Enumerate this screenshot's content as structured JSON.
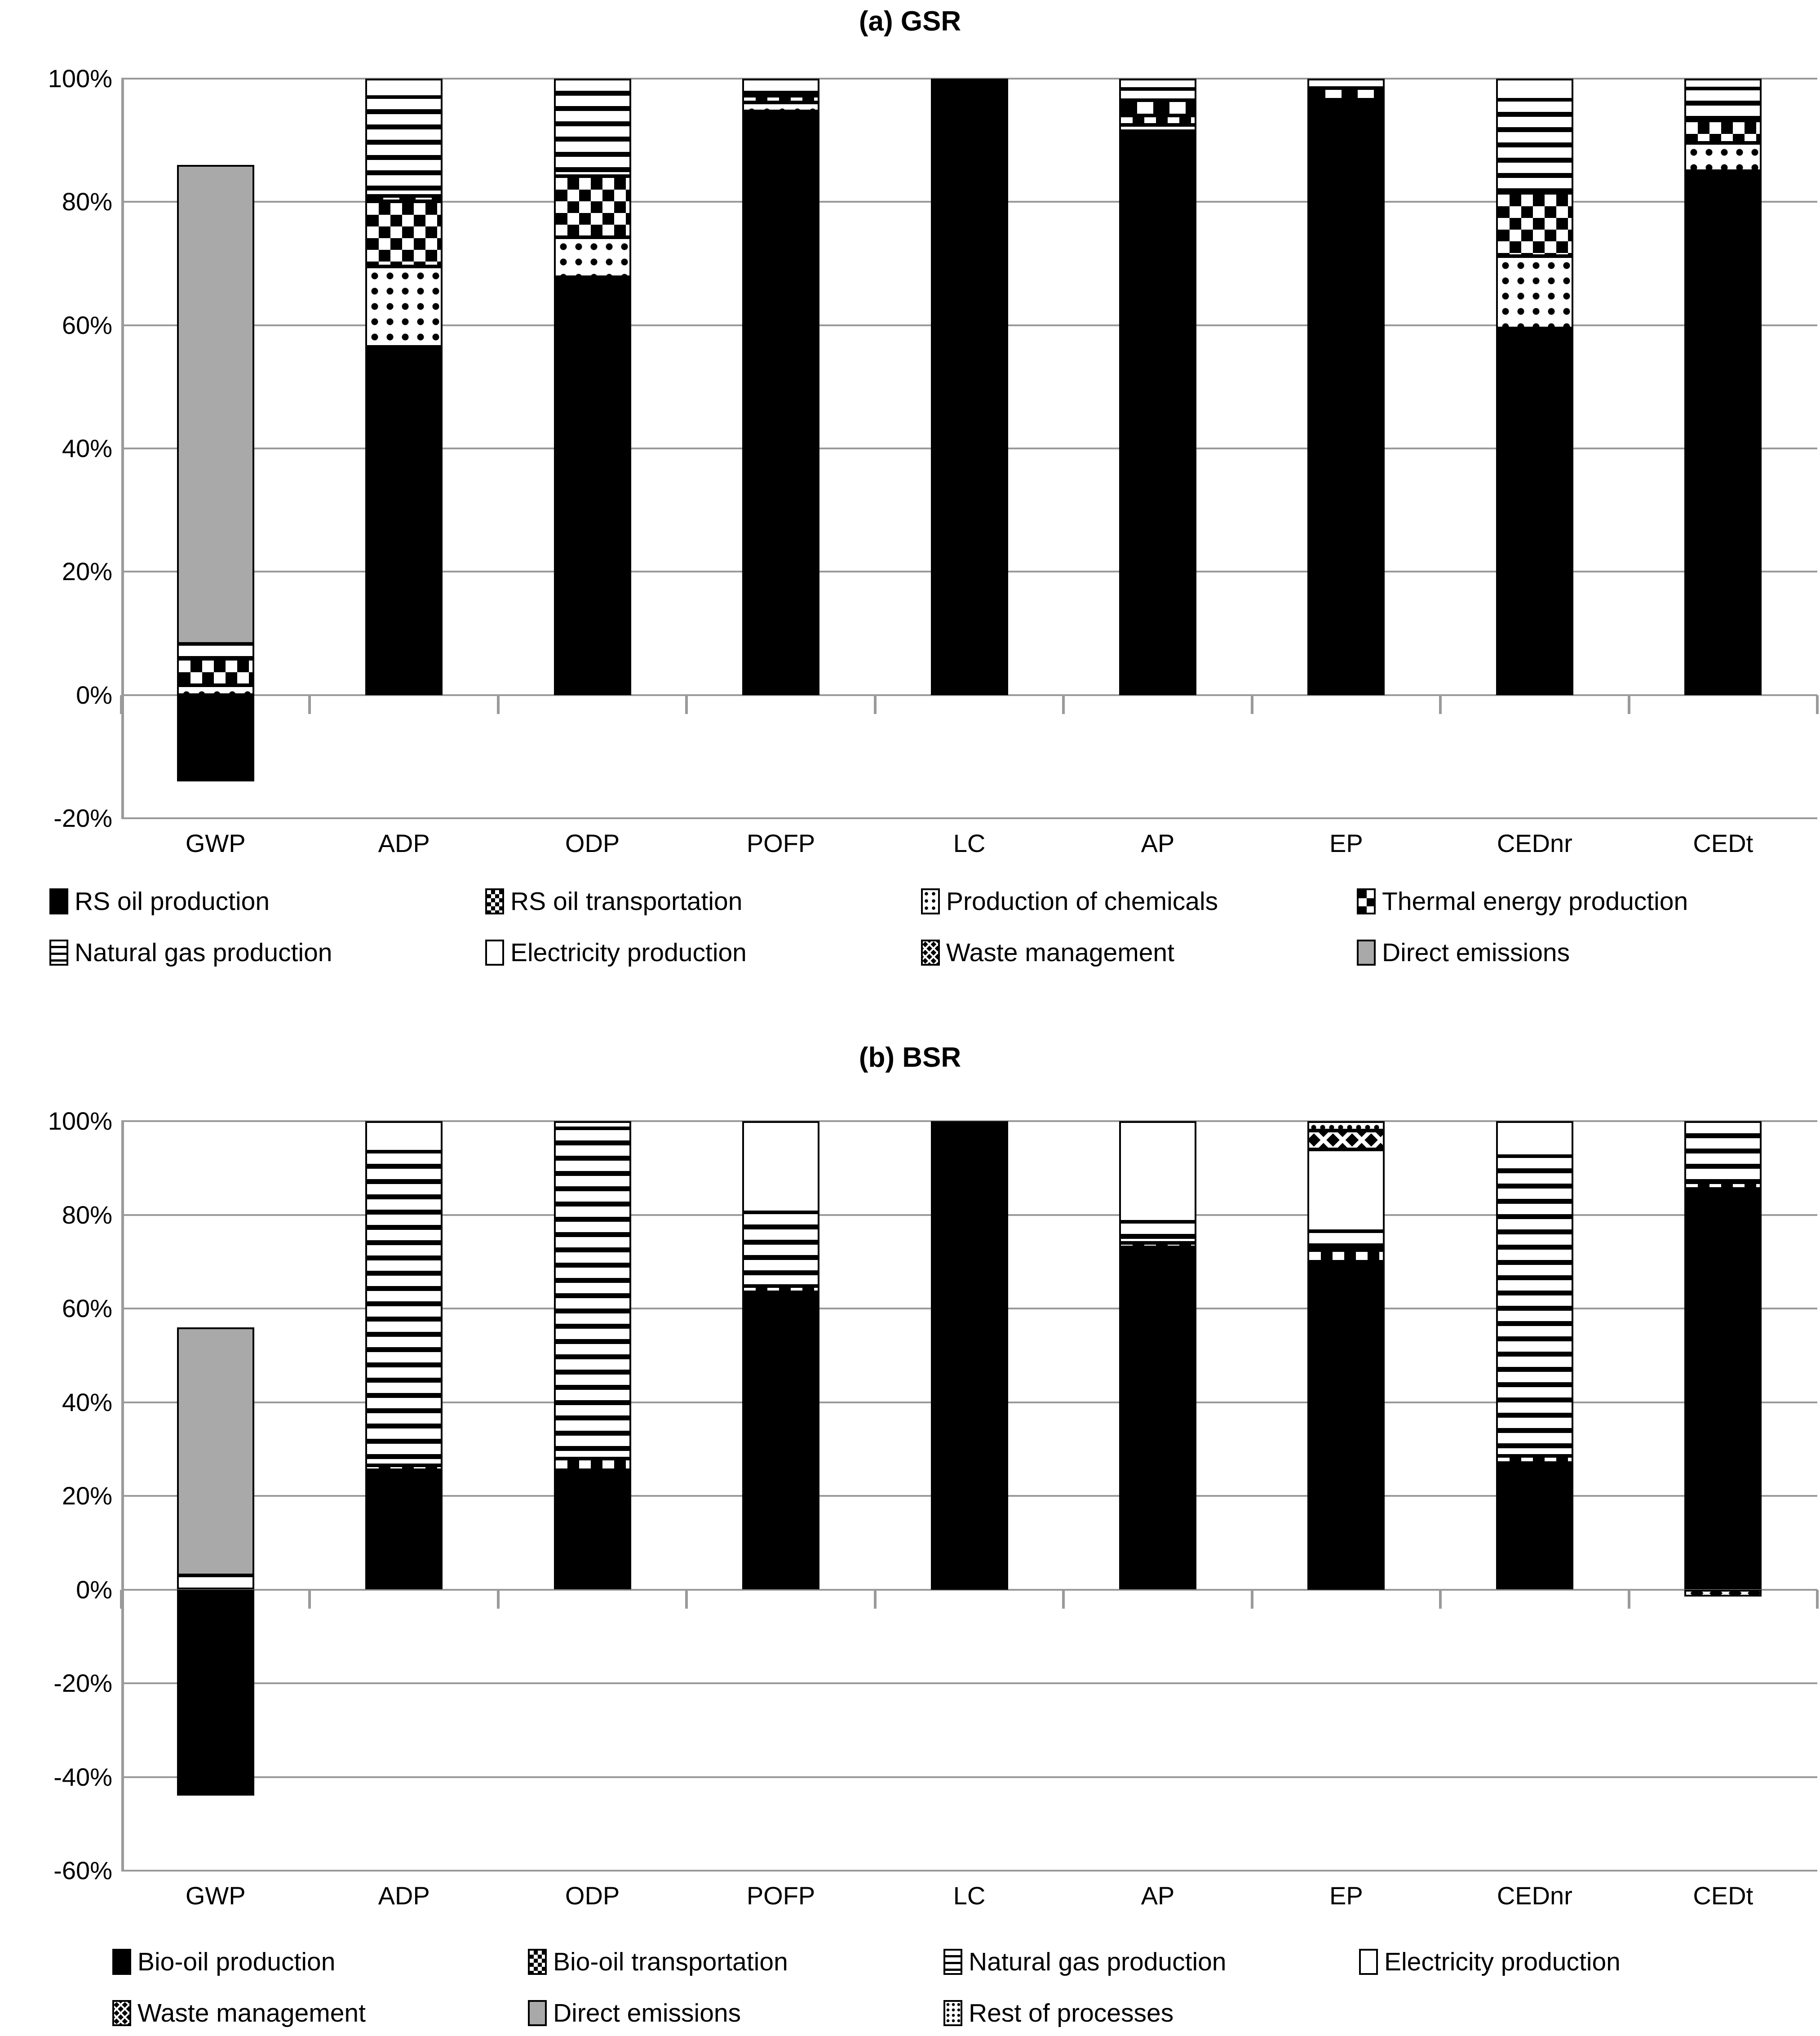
{
  "chart_data": [
    {
      "id": "gsr",
      "type": "bar",
      "stacked": true,
      "title": "(a) GSR",
      "categories": [
        "GWP",
        "ADP",
        "ODP",
        "POFP",
        "LC",
        "AP",
        "EP",
        "CEDnr",
        "CEDt"
      ],
      "ylim": [
        -20,
        100
      ],
      "ytick_step": 20,
      "ytick_suffix": "%",
      "grid": true,
      "legend_position": "bottom",
      "legend_order": [
        "RS oil production",
        "RS oil transportation",
        "Production of chemicals",
        "Thermal energy production",
        "Natural gas production",
        "Electricity production",
        "Waste management",
        "Direct emissions"
      ],
      "series": [
        {
          "name": "RS oil production",
          "pattern": "solid-black",
          "values": [
            -14,
            56.5,
            67.8,
            94.7,
            100,
            91.5,
            96.6,
            59.5,
            85
          ]
        },
        {
          "name": "Production of chemicals",
          "pattern": "dots",
          "values": [
            1.6,
            13,
            6.5,
            1.4,
            0,
            1,
            0,
            11.7,
            4.6
          ]
        },
        {
          "name": "RS oil transportation",
          "pattern": "checker",
          "values": [
            4.3,
            10.6,
            9.9,
            1.1,
            0,
            1.5,
            0,
            10.3,
            3.6
          ]
        },
        {
          "name": "Thermal energy production",
          "pattern": "big-checker",
          "values": [
            0,
            0.9,
            0,
            0,
            0,
            2.5,
            1.9,
            0,
            0
          ]
        },
        {
          "name": "Natural gas production",
          "pattern": "h-stripes",
          "values": [
            2.4,
            16,
            15.8,
            2.8,
            0,
            1.8,
            0,
            15.1,
            5.2
          ]
        },
        {
          "name": "Electricity production",
          "pattern": "white",
          "values": [
            0,
            3,
            0,
            0,
            0,
            1.7,
            1.5,
            3.4,
            1.6
          ]
        },
        {
          "name": "Waste management",
          "pattern": "zigzag",
          "values": [
            0,
            0,
            0,
            0,
            0,
            0,
            0,
            0,
            0
          ]
        },
        {
          "name": "Direct emissions",
          "pattern": "gray",
          "values": [
            77.7,
            0,
            0,
            0,
            0,
            0,
            0,
            0,
            0
          ]
        }
      ]
    },
    {
      "id": "bsr",
      "type": "bar",
      "stacked": true,
      "title": "(b) BSR",
      "categories": [
        "GWP",
        "ADP",
        "ODP",
        "POFP",
        "LC",
        "AP",
        "EP",
        "CEDnr",
        "CEDt"
      ],
      "ylim": [
        -60,
        100
      ],
      "ytick_step": 20,
      "ytick_suffix": "%",
      "grid": true,
      "legend_position": "bottom",
      "legend_order": [
        "Bio-oil production",
        "Bio-oil transportation",
        "Natural gas production",
        "Electricity production",
        "Waste management",
        "Direct emissions",
        "Rest of processes"
      ],
      "series": [
        {
          "name": "Bio-oil production",
          "pattern": "solid-black",
          "values": [
            -44,
            25.5,
            25.5,
            63.5,
            100,
            73,
            70,
            27,
            85.5
          ]
        },
        {
          "name": "Bio-oil transportation",
          "pattern": "checker",
          "values": [
            0,
            1,
            2.5,
            1.3,
            0,
            1,
            2.5,
            1.5,
            1.5
          ]
        },
        {
          "name": "Natural gas production",
          "pattern": "h-stripes",
          "values": [
            3,
            67,
            70.5,
            15.7,
            0,
            4.5,
            4,
            64,
            13
          ]
        },
        {
          "name": "Electricity production",
          "pattern": "white",
          "values": [
            0,
            6.5,
            1.5,
            19.5,
            0,
            21.5,
            17.5,
            7.5,
            0
          ]
        },
        {
          "name": "Waste management",
          "pattern": "zigzag",
          "values": [
            0,
            0,
            0,
            0,
            0,
            0,
            4,
            0,
            -1.5
          ]
        },
        {
          "name": "Rest of processes",
          "pattern": "dense-dots",
          "values": [
            0,
            0,
            0,
            0,
            0,
            0,
            2,
            0,
            0
          ]
        },
        {
          "name": "Direct emissions",
          "pattern": "gray",
          "values": [
            53,
            0,
            0,
            0,
            0,
            0,
            0,
            0,
            0
          ]
        }
      ]
    }
  ],
  "colors": {
    "grid": "#9a9a9a",
    "bar_fill_dark": "#000000",
    "direct_emissions_gray": "#a9a9a9",
    "background": "#ffffff"
  }
}
